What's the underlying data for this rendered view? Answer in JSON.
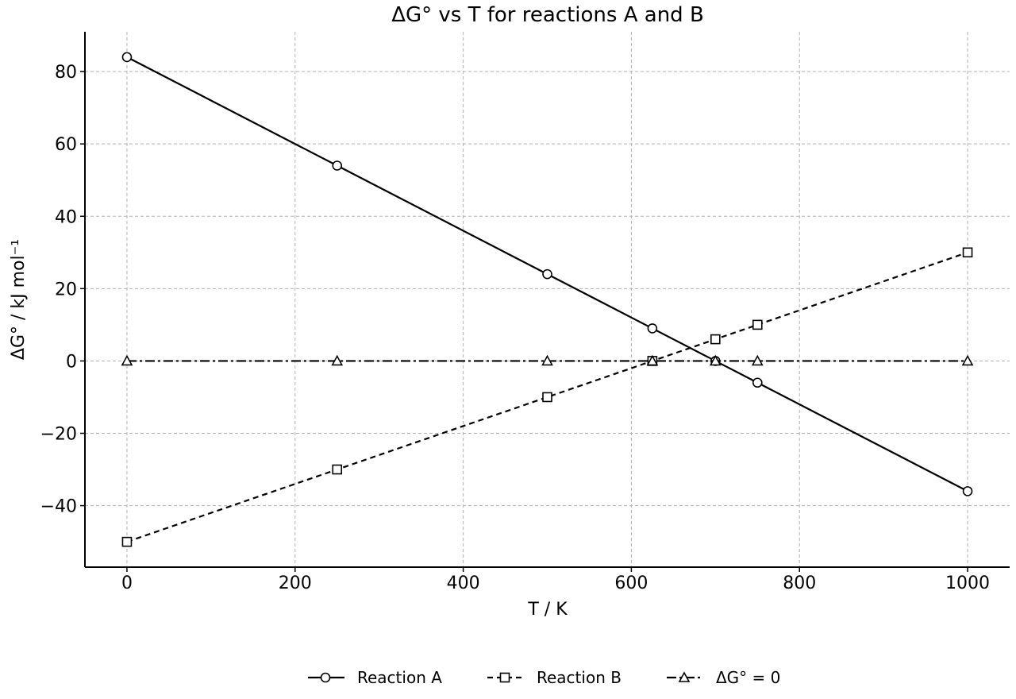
{
  "chart_data": {
    "type": "line",
    "title": "ΔG° vs T for reactions A and B",
    "xlabel": "T / K",
    "ylabel": "ΔG° / kJ mol⁻¹",
    "xlim": [
      -50,
      1050
    ],
    "ylim": [
      -57,
      91
    ],
    "x_ticks": [
      0,
      200,
      400,
      600,
      800,
      1000
    ],
    "x_tick_labels": [
      "0",
      "200",
      "400",
      "600",
      "800",
      "1000"
    ],
    "y_ticks": [
      -40,
      -20,
      0,
      20,
      40,
      60,
      80
    ],
    "y_tick_labels": [
      "−40",
      "−20",
      "0",
      "20",
      "40",
      "60",
      "80"
    ],
    "grid": true,
    "legend_position": "bottom-center",
    "series": [
      {
        "name": "Reaction A",
        "marker": "circle",
        "line_style": "solid",
        "color": "#000000",
        "points": [
          [
            0,
            84
          ],
          [
            250,
            54
          ],
          [
            500,
            24
          ],
          [
            625,
            9
          ],
          [
            700,
            0
          ],
          [
            750,
            -6
          ],
          [
            1000,
            -36
          ]
        ]
      },
      {
        "name": "Reaction B",
        "marker": "square",
        "line_style": "dashed",
        "color": "#000000",
        "points": [
          [
            0,
            -50
          ],
          [
            250,
            -30
          ],
          [
            500,
            -10
          ],
          [
            625,
            0
          ],
          [
            700,
            6
          ],
          [
            750,
            10
          ],
          [
            1000,
            30
          ]
        ]
      },
      {
        "name": "ΔG° = 0",
        "marker": "triangle",
        "line_style": "dashdot",
        "color": "#000000",
        "points": [
          [
            0,
            0
          ],
          [
            250,
            0
          ],
          [
            500,
            0
          ],
          [
            625,
            0
          ],
          [
            700,
            0
          ],
          [
            750,
            0
          ],
          [
            1000,
            0
          ]
        ]
      }
    ]
  }
}
